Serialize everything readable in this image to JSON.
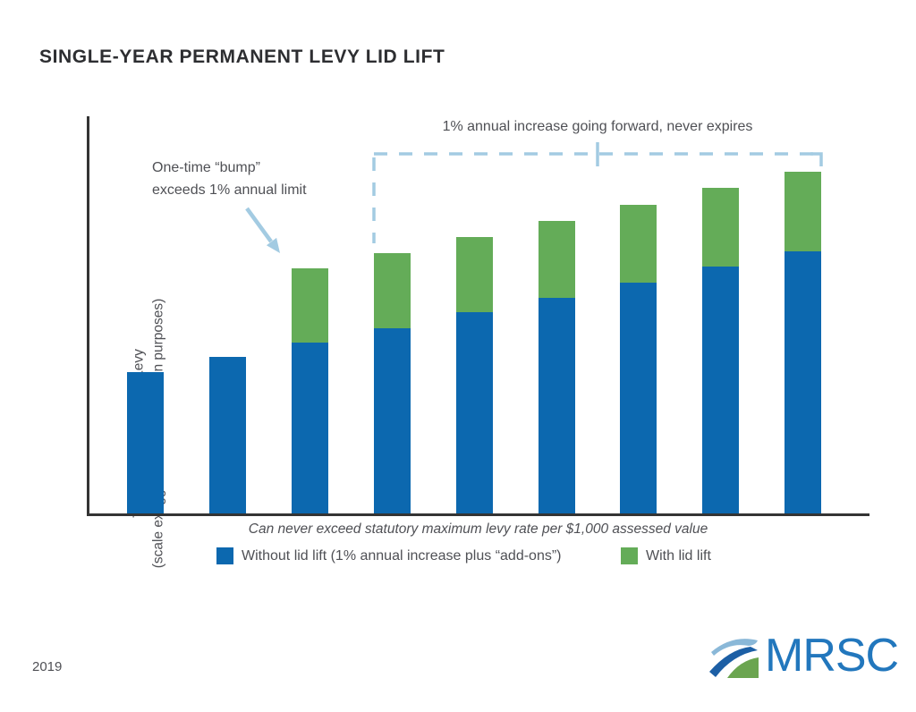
{
  "slide": {
    "title": "SINGLE-YEAR PERMANENT LEVY LID LIFT",
    "year": "2019",
    "logo_text": "MRSC"
  },
  "axis": {
    "y_label_line1": "Total Dollar Amount of Levy",
    "y_label_line2": "(scale exaggerated for illustration purposes)",
    "x_caption": "Can never exceed statutory maximum levy rate per $1,000 assessed value"
  },
  "annotations": {
    "bump_line1": "One-time “bump”",
    "bump_line2": "exceeds 1% annual limit",
    "bracket_label": "1% annual increase going forward, never expires"
  },
  "legend": [
    {
      "label": "Without lid lift (1% annual increase plus “add-ons”)",
      "color": "#0c68af"
    },
    {
      "label": "With lid lift",
      "color": "#64ac58"
    }
  ],
  "colors": {
    "bar_blue": "#0c68af",
    "bar_green": "#64ac58",
    "callout_light_blue": "#a3cbe2",
    "axis_dark": "#343434",
    "text_gray": "#4f5055",
    "title_dark": "#2d2e31",
    "logo_blue": "#2277bd",
    "logo_dark_blue": "#1c5fa5",
    "logo_light_blue": "#8ab8d8",
    "logo_green": "#6ba550"
  },
  "chart_data": {
    "type": "bar",
    "stacked": true,
    "orientation": "vertical",
    "title": "SINGLE-YEAR PERMANENT LEVY LID LIFT",
    "xlabel": "Can never exceed statutory maximum levy rate per $1,000 assessed value",
    "ylabel": "Total Dollar Amount of Levy (scale exaggerated for illustration purposes)",
    "x_tick_labels_shown": false,
    "y_tick_labels_shown": false,
    "grid": false,
    "legend_position": "bottom",
    "categories": [
      1,
      2,
      3,
      4,
      5,
      6,
      7,
      8,
      9
    ],
    "units": "relative levy amount (scale exaggerated for illustration purposes)",
    "series": [
      {
        "name": "Without lid lift (1% annual increase plus “add-ons”)",
        "color": "#0c68af",
        "values": [
          158,
          175,
          191,
          207,
          225,
          241,
          258,
          276,
          293
        ]
      },
      {
        "name": "With lid lift",
        "color": "#64ac58",
        "values": [
          0,
          0,
          83,
          84,
          84,
          86,
          87,
          88,
          89
        ]
      }
    ],
    "annotations": [
      {
        "text": "One-time “bump” exceeds 1% annual limit",
        "target": "green segment of bar 3",
        "style": "arrow"
      },
      {
        "text": "1% annual increase going forward, never expires",
        "target": "bars 4 through 9",
        "style": "dashed bracket"
      }
    ]
  }
}
